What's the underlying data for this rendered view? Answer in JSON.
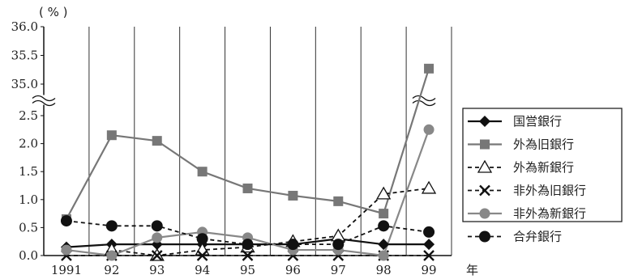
{
  "chart_data": {
    "type": "line",
    "unit_label": "( % )",
    "x_suffix": "年",
    "categories": [
      "1991",
      "92",
      "93",
      "94",
      "95",
      "96",
      "97",
      "98",
      "99"
    ],
    "y_axis": {
      "scale": "broken",
      "lower_range": [
        0,
        2.5
      ],
      "upper_range": [
        35.0,
        36.0
      ],
      "tick_labels": [
        "0.0",
        "0.5",
        "1.0",
        "1.5",
        "2.0",
        "2.5",
        "35.0",
        "35.5",
        "36.0"
      ]
    },
    "grid": "vertical lines at each year",
    "legend_position": "right",
    "series": [
      {
        "name": "国営銀行",
        "color": "#111111",
        "dash": "solid",
        "marker": "diamond",
        "values": [
          0.15,
          0.2,
          0.2,
          0.2,
          0.2,
          0.2,
          0.3,
          0.2,
          0.2
        ]
      },
      {
        "name": "外為旧銀行",
        "color": "#777777",
        "dash": "solid",
        "marker": "square",
        "values": [
          0.65,
          2.15,
          2.05,
          1.5,
          1.2,
          1.07,
          0.97,
          0.75,
          35.27
        ]
      },
      {
        "name": "外為新銀行",
        "color": "#111111",
        "dash": "dashed",
        "marker": "triangle-open",
        "values": [
          null,
          0.1,
          0.0,
          0.1,
          0.15,
          0.25,
          0.35,
          1.1,
          1.2
        ]
      },
      {
        "name": "非外為旧銀行",
        "color": "#111111",
        "dash": "dashed",
        "marker": "x",
        "values": [
          0.0,
          0.0,
          0.0,
          0.0,
          0.0,
          0.0,
          0.0,
          0.0,
          0.0
        ]
      },
      {
        "name": "非外為新銀行",
        "color": "#888888",
        "dash": "solid",
        "marker": "circle",
        "values": [
          0.1,
          0.0,
          0.32,
          0.42,
          0.32,
          0.1,
          0.1,
          0.0,
          2.25
        ]
      },
      {
        "name": "合弁銀行",
        "color": "#111111",
        "dash": "dashed",
        "marker": "circle-filled",
        "values": [
          0.62,
          0.53,
          0.53,
          0.3,
          0.2,
          0.2,
          0.2,
          0.53,
          0.42
        ]
      }
    ]
  }
}
